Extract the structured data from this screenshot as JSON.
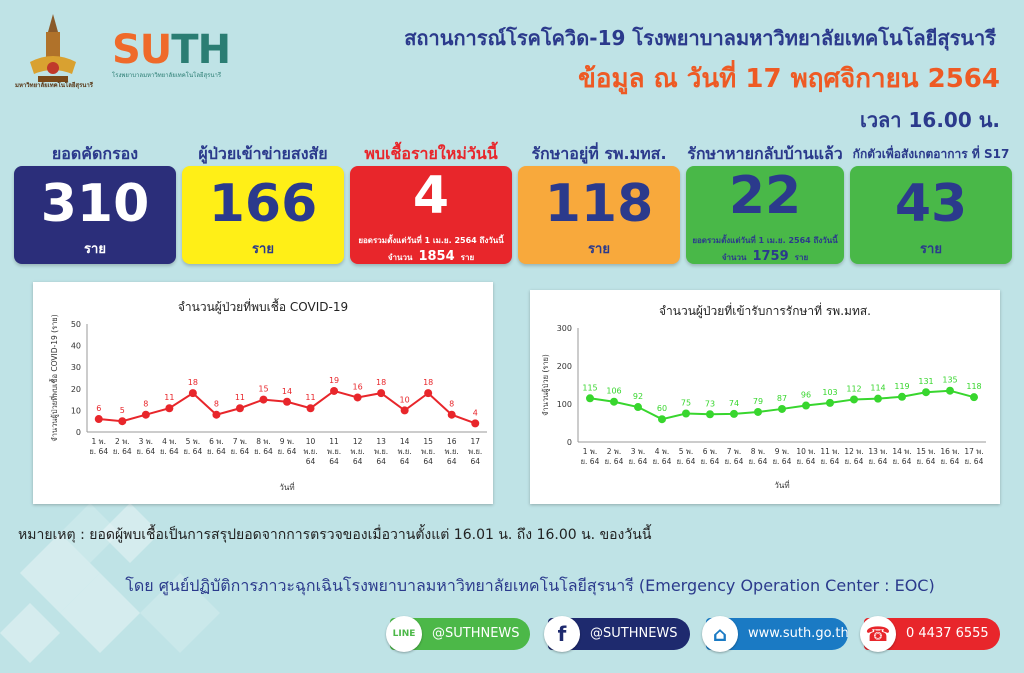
{
  "header": {
    "title": "สถานการณ์โรคโควิด-19 โรงพยาบาลมหาวิทยาลัยเทคโนโลยีสุรนารี",
    "date": "ข้อมูล ณ วันที่ 17 พฤศจิกายน 2564",
    "time": "เวลา 16.00 น.",
    "crest_caption": "มหาวิทยาลัยเทคโนโลยีสุรนารี",
    "logo_su": "SU",
    "logo_th": "TH",
    "logo_sub": "โรงพยาบาลมหาวิทยาลัยเทคโนโลยีสุรนารี"
  },
  "stats": [
    {
      "label": "ยอดคัดกรอง",
      "value": "310",
      "unit": "ราย",
      "color": "#2b2e7a",
      "label_color": "#2b3a8c",
      "text_color": "#ffffff"
    },
    {
      "label": "ผู้ป่วยเข้าข่ายสงสัย",
      "value": "166",
      "unit": "ราย",
      "color": "#ffef17",
      "label_color": "#2b3a8c",
      "text_color": "#2b3a8c"
    },
    {
      "label": "พบเชื้อรายใหม่วันนี้",
      "value": "4",
      "unit": "",
      "color": "#e8262b",
      "label_color": "#e8262b",
      "text_color": "#ffffff",
      "note": "ยอดรวมตั้งแต่วันที่ 1 เม.ย. 2564 ถึงวันนี้",
      "note2_prefix": "จำนวน",
      "note2_value": "1854",
      "note2_suffix": "ราย"
    },
    {
      "label": "รักษาอยู่ที่ รพ.มทส.",
      "value": "118",
      "unit": "ราย",
      "color": "#f8a93c",
      "label_color": "#2b3a8c",
      "text_color": "#2b3a8c"
    },
    {
      "label": "รักษาหายกลับบ้านแล้ว",
      "value": "22",
      "unit": "",
      "color": "#49b848",
      "label_color": "#2b3a8c",
      "text_color": "#2b3a8c",
      "note": "ยอดรวมตั้งแต่วันที่ 1 เม.ย. 2564 ถึงวันนี้",
      "note2_prefix": "จำนวน",
      "note2_value": "1759",
      "note2_suffix": "ราย"
    },
    {
      "label": "กักตัวเพื่อสังเกตอาการ ที่ S17",
      "value": "43",
      "unit": "ราย",
      "color": "#49b848",
      "label_color": "#2b3a8c",
      "text_color": "#2b3a8c"
    }
  ],
  "chart_data": [
    {
      "type": "line",
      "title": "จำนวนผู้ป่วยที่พบเชื้อ COVID-19",
      "xlabel": "วันที่",
      "ylabel": "จำนวนผู้ป่วยที่พบเชื้อ COVID-19 (ราย)",
      "ylim": [
        0,
        50
      ],
      "yticks": [
        0,
        10,
        20,
        30,
        40,
        50
      ],
      "color": "#e8262b",
      "grid": false,
      "x": [
        [
          "1 พ.",
          "ย. 64"
        ],
        [
          "2 พ.",
          "ย. 64"
        ],
        [
          "3 พ.",
          "ย. 64"
        ],
        [
          "4 พ.",
          "ย. 64"
        ],
        [
          "5 พ.",
          "ย. 64"
        ],
        [
          "6 พ.",
          "ย. 64"
        ],
        [
          "7 พ.",
          "ย. 64"
        ],
        [
          "8 พ.",
          "ย. 64"
        ],
        [
          "9 พ.",
          "ย. 64"
        ],
        [
          "10",
          "พ.ย.",
          "64"
        ],
        [
          "11",
          "พ.ย.",
          "64"
        ],
        [
          "12",
          "พ.ย.",
          "64"
        ],
        [
          "13",
          "พ.ย.",
          "64"
        ],
        [
          "14",
          "พ.ย.",
          "64"
        ],
        [
          "15",
          "พ.ย.",
          "64"
        ],
        [
          "16",
          "พ.ย.",
          "64"
        ],
        [
          "17",
          "พ.ย.",
          "64"
        ]
      ],
      "values": [
        6,
        5,
        8,
        11,
        18,
        8,
        11,
        15,
        14,
        11,
        19,
        16,
        18,
        10,
        18,
        8,
        4
      ]
    },
    {
      "type": "line",
      "title": "จำนวนผู้ป่วยที่เข้ารับการรักษาที่ รพ.มทส.",
      "xlabel": "วันที่",
      "ylabel": "จำนวนผู้ป่วย (ราย)",
      "ylim": [
        0,
        300
      ],
      "yticks": [
        0,
        100,
        200,
        300
      ],
      "color": "#38d62e",
      "grid": false,
      "x": [
        [
          "1 พ.",
          "ย. 64"
        ],
        [
          "2 พ.",
          "ย. 64"
        ],
        [
          "3 พ.",
          "ย. 64"
        ],
        [
          "4 พ.",
          "ย. 64"
        ],
        [
          "5 พ.",
          "ย. 64"
        ],
        [
          "6 พ.",
          "ย. 64"
        ],
        [
          "7 พ.",
          "ย. 64"
        ],
        [
          "8 พ.",
          "ย. 64"
        ],
        [
          "9 พ.",
          "ย. 64"
        ],
        [
          "10 พ.",
          "ย. 64"
        ],
        [
          "11 พ.",
          "ย. 64"
        ],
        [
          "12 พ.",
          "ย. 64"
        ],
        [
          "13 พ.",
          "ย. 64"
        ],
        [
          "14 พ.",
          "ย. 64"
        ],
        [
          "15 พ.",
          "ย. 64"
        ],
        [
          "16 พ.",
          "ย. 64"
        ],
        [
          "17 พ.",
          "ย. 64"
        ]
      ],
      "values": [
        115,
        106,
        92,
        60,
        75,
        73,
        74,
        79,
        87,
        96,
        103,
        112,
        114,
        119,
        131,
        135,
        118
      ]
    }
  ],
  "note": "หมายเหตุ :  ยอดผู้พบเชื้อเป็นการสรุปยอดจากการตรวจของเมื่อวานตั้งแต่ 16.01 น. ถึง 16.00 น. ของวันนี้",
  "footer": "โดย ศูนย์ปฏิบัติการภาวะฉุกเฉินโรงพยาบาลมหาวิทยาลัยเทคโนโลยีสุรนารี (Emergency Operation  Center : EOC)",
  "contacts": [
    {
      "icon": "line-icon",
      "glyph": "LINE",
      "text": "@SUTHNEWS",
      "color": "#4cb848",
      "icon_color": "#4cb848"
    },
    {
      "icon": "facebook-icon",
      "glyph": "f",
      "text": "@SUTHNEWS",
      "color": "#1e2a6e",
      "icon_color": "#1e2a6e"
    },
    {
      "icon": "home-icon",
      "glyph": "⌂",
      "text": "www.suth.go.th",
      "color": "#1a7ac4",
      "icon_color": "#1a7ac4"
    },
    {
      "icon": "phone-icon",
      "glyph": "☎",
      "text": "0 4437 6555",
      "color": "#e8262b",
      "icon_color": "#e8262b"
    }
  ]
}
